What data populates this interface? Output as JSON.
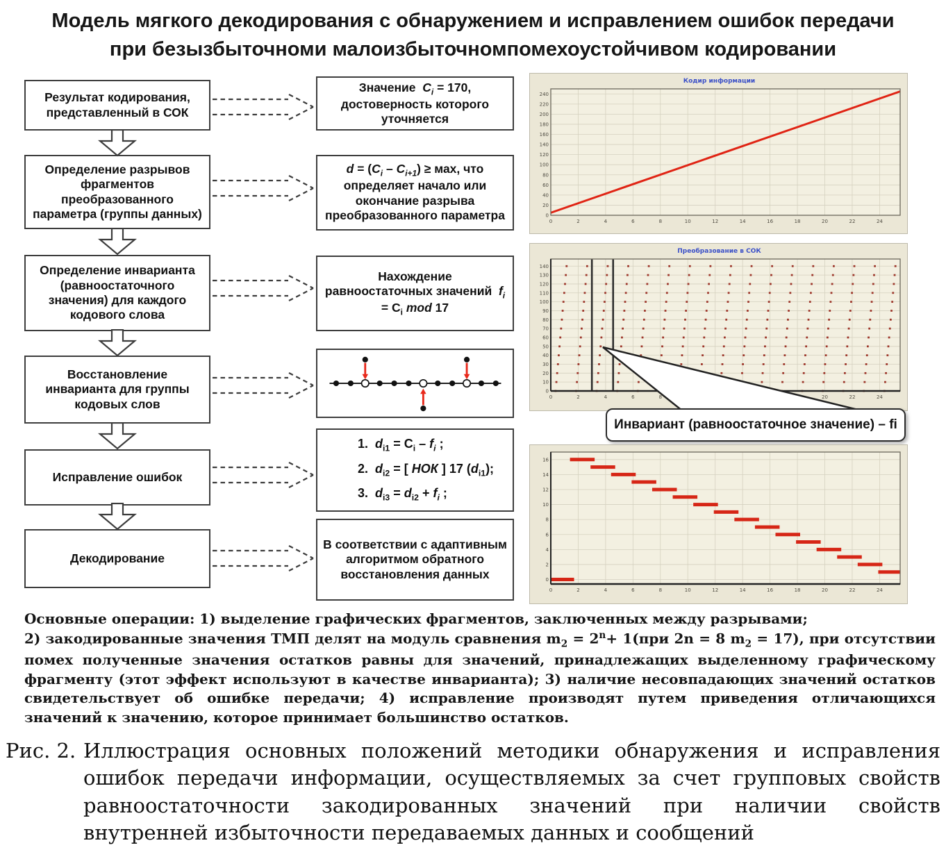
{
  "title": {
    "line1": "Модель мягкого декодирования с обнаружением и исправлением ошибок передачи",
    "line2": "при безызбыточноми малоизбыточномпомехоустойчивом кодировании"
  },
  "flowchart": {
    "steps": [
      {
        "label": "Результат кодирования, представленный в СОК"
      },
      {
        "label": "Определение разрывов фрагментов преобразованного параметра (группы данных)"
      },
      {
        "label": "Определение инварианта (равноостаточного значения) для каждого кодового слова"
      },
      {
        "label": "Восстановление инварианта для группы кодовых слов"
      },
      {
        "label": "Исправление ошибок"
      },
      {
        "label": "Декодирование"
      }
    ]
  },
  "annotations": {
    "value_box": "Значение&nbsp; <i>C<sub>i</sub></i> = 170, достоверность которого уточняется",
    "gap_box": "<i>d</i> = (<i>C<sub>i</sub></i> – <i>C<sub>i+1</sub></i>) ≥ мах, что определяет начало или окончание разрыва преобразованного параметра",
    "invariant_box": "Нахождение равноостаточных значений&nbsp; <i>f<sub>i</sub></i> = C<sub>i</sub> <i>mod</i> 17",
    "formulas": [
      "1.&nbsp;&nbsp;<i>d</i><sub>i1</sub> = C<sub>i</sub> – <i>f<sub>i</sub></i> ;",
      "2.&nbsp;&nbsp;<i>d</i><sub>i2</sub> = [ <i>НОК</i> ] 17 (<i>d</i><sub>i1</sub>);",
      "3.&nbsp;&nbsp;<i>d</i><sub>i3</sub> = <i>d</i><sub>i2</sub> + <i>f<sub>i</sub></i> ;"
    ],
    "decode_box": "В соответствии с адаптивным алгоритмом обратного восстановления данных"
  },
  "invariant_diagram": {
    "point_count": 12,
    "open_indices": [
      2,
      6,
      9
    ],
    "arrows": [
      {
        "index": 2,
        "dir": "down"
      },
      {
        "index": 6,
        "dir": "up"
      },
      {
        "index": 9,
        "dir": "down"
      }
    ],
    "arrow_color": "#e8281a"
  },
  "callout": {
    "label": "Инвариант (равноостаточное значение) – fi"
  },
  "operations": {
    "html": "Основные операции: 1) выделение графических фрагментов, заключенных между разрывами;<br>2) закодированные значения ТМП делят на модуль сравнения m<sub>2</sub> = 2<sup>n</sup>+ 1(при 2n = 8 m<sub>2</sub> = 17), при отсутствии помех полученные значения остатков равны для значений, принадлежащих выделенному графическому фрагменту (этот эффект используют в качестве инварианта); 3) наличие несовпадающих значений остатков свидетельствует об ошибке передачи; 4) исправление производят путем приведения отличающихся значений к значению, которое принимает большинство остатков."
  },
  "caption": {
    "label": "Рис. 2.",
    "text": "Иллюстрация основных положений методики обнаружения и исправления ошибок передачи информации, осуществляемых за счет групповых свойств равноостаточности закодированных значений при наличии свойств внутренней избыточности передаваемых данных и сообщений"
  },
  "chart_data": [
    {
      "id": "chart1",
      "type": "line",
      "title": "Кодир информации",
      "xlim": [
        0,
        25.5
      ],
      "ylim": [
        0,
        250
      ],
      "xticks": [
        0,
        2,
        4,
        6,
        8,
        10,
        12,
        14,
        16,
        18,
        20,
        22,
        24
      ],
      "yticks": [
        0,
        20,
        40,
        60,
        80,
        100,
        120,
        140,
        160,
        180,
        200,
        220,
        240
      ],
      "points": [
        [
          0,
          5
        ],
        [
          25.5,
          245
        ]
      ],
      "margins": {
        "l": 30,
        "t": 22,
        "r": 12,
        "b": 28
      },
      "axis_emph": false,
      "colors": {
        "plot_bg": "#f3f0e1",
        "grid": "#d5d1bf",
        "frame": "#6b675b",
        "series": "#e02414",
        "title": "#3b50c8"
      }
    },
    {
      "id": "chart2",
      "type": "scatter-stripes",
      "title": "Преобразование в СОК",
      "xlim": [
        0,
        25.5
      ],
      "ylim": [
        0,
        148
      ],
      "xticks": [
        0,
        2,
        4,
        6,
        8,
        10,
        12,
        14,
        16,
        18,
        20,
        22,
        24
      ],
      "yticks": [
        0,
        10,
        20,
        30,
        40,
        50,
        60,
        70,
        80,
        90,
        100,
        110,
        120,
        130,
        140
      ],
      "stripes": {
        "count": 17,
        "x_start": 0.35,
        "x_spacing": 1.5,
        "lean": 0.85,
        "dots_per_stripe": 15,
        "y_step": 10
      },
      "vlines": [
        3.0,
        4.55
      ],
      "margins": {
        "l": 30,
        "t": 22,
        "r": 12,
        "b": 30
      },
      "axis_emph": true,
      "colors": {
        "plot_bg": "#f3f0e1",
        "grid": "#d5d1bf",
        "frame": "#6b675b",
        "series": "#9e382c",
        "title": "#3b50c8"
      }
    },
    {
      "id": "chart3",
      "type": "segments",
      "title": "",
      "xlim": [
        0,
        25.5
      ],
      "ylim": [
        -0.6,
        17
      ],
      "xticks": [
        0,
        2,
        4,
        6,
        8,
        10,
        12,
        14,
        16,
        18,
        20,
        22,
        24
      ],
      "yticks": [
        0,
        2,
        4,
        6,
        8,
        10,
        12,
        14,
        16
      ],
      "segments": [
        {
          "y": 0,
          "x1": 0,
          "x2": 1.7
        },
        {
          "y": 16,
          "x1": 1.4,
          "x2": 3.2
        },
        {
          "y": 15,
          "x1": 2.9,
          "x2": 4.7
        },
        {
          "y": 14,
          "x1": 4.4,
          "x2": 6.2
        },
        {
          "y": 13,
          "x1": 5.9,
          "x2": 7.7
        },
        {
          "y": 12,
          "x1": 7.4,
          "x2": 9.2
        },
        {
          "y": 11,
          "x1": 8.9,
          "x2": 10.7
        },
        {
          "y": 10,
          "x1": 10.4,
          "x2": 12.2
        },
        {
          "y": 9,
          "x1": 11.9,
          "x2": 13.7
        },
        {
          "y": 8,
          "x1": 13.4,
          "x2": 15.2
        },
        {
          "y": 7,
          "x1": 14.9,
          "x2": 16.7
        },
        {
          "y": 6,
          "x1": 16.4,
          "x2": 18.2
        },
        {
          "y": 5,
          "x1": 17.9,
          "x2": 19.7
        },
        {
          "y": 4,
          "x1": 19.4,
          "x2": 21.2
        },
        {
          "y": 3,
          "x1": 20.9,
          "x2": 22.7
        },
        {
          "y": 2,
          "x1": 22.4,
          "x2": 24.2
        },
        {
          "y": 1,
          "x1": 23.9,
          "x2": 25.5
        }
      ],
      "margins": {
        "l": 30,
        "t": 10,
        "r": 12,
        "b": 30
      },
      "axis_emph": true,
      "colors": {
        "plot_bg": "#f3f0e1",
        "grid": "#d5d1bf",
        "frame": "#6b675b",
        "series": "#d62616",
        "title": "#3b50c8"
      }
    }
  ]
}
